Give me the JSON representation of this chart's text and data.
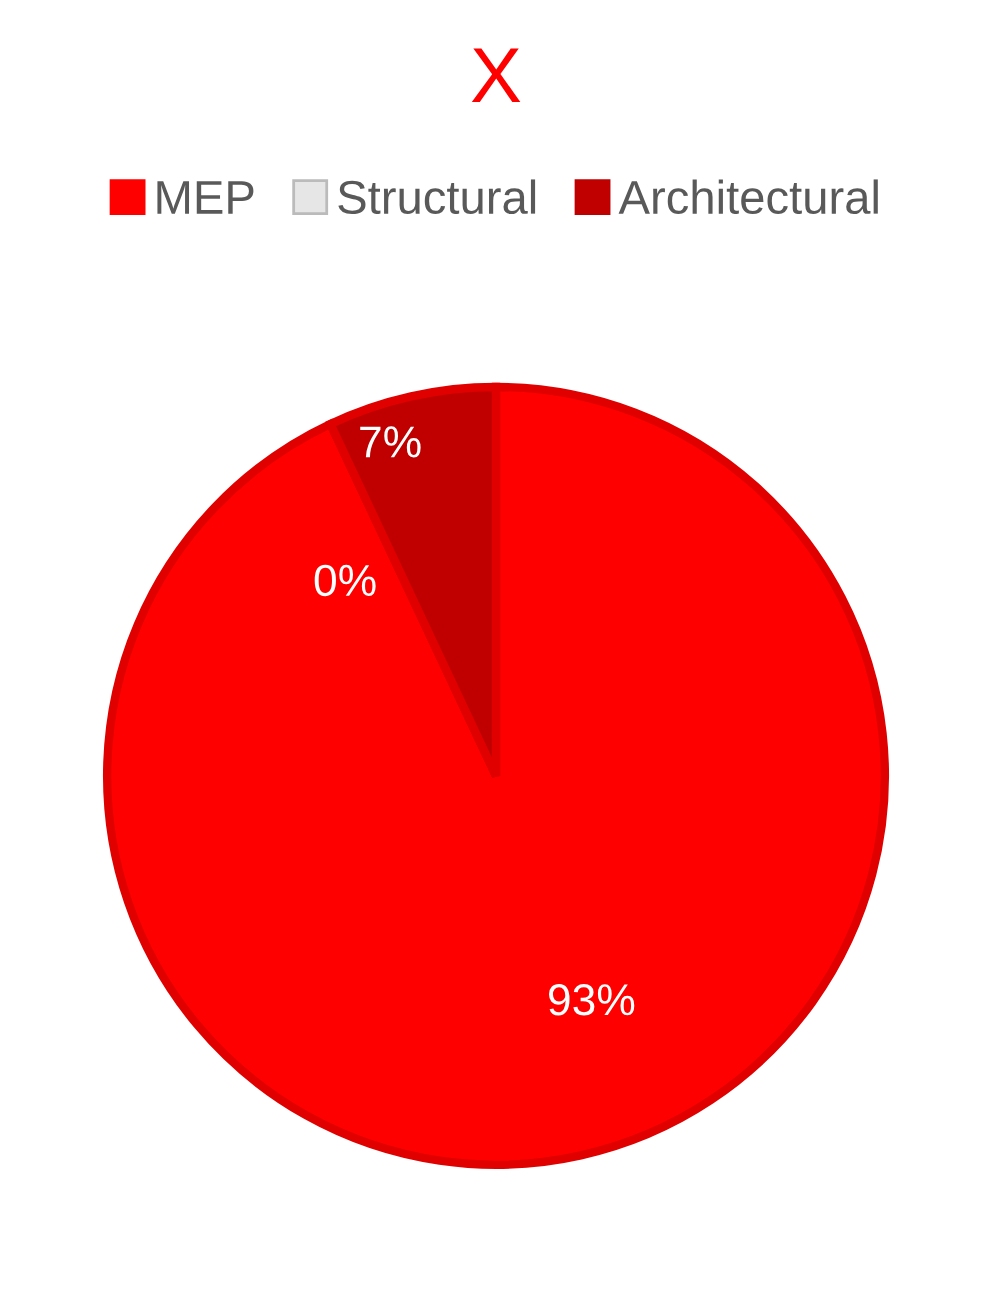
{
  "chart_data": {
    "type": "pie",
    "title": "X",
    "categories": [
      "MEP",
      "Structural",
      "Architectural"
    ],
    "values": [
      93,
      0,
      7
    ],
    "colors": [
      "#ff0000",
      "#e6e6e6",
      "#c00000"
    ],
    "value_labels": [
      "93%",
      "0%",
      "7%"
    ],
    "legend": "top"
  }
}
